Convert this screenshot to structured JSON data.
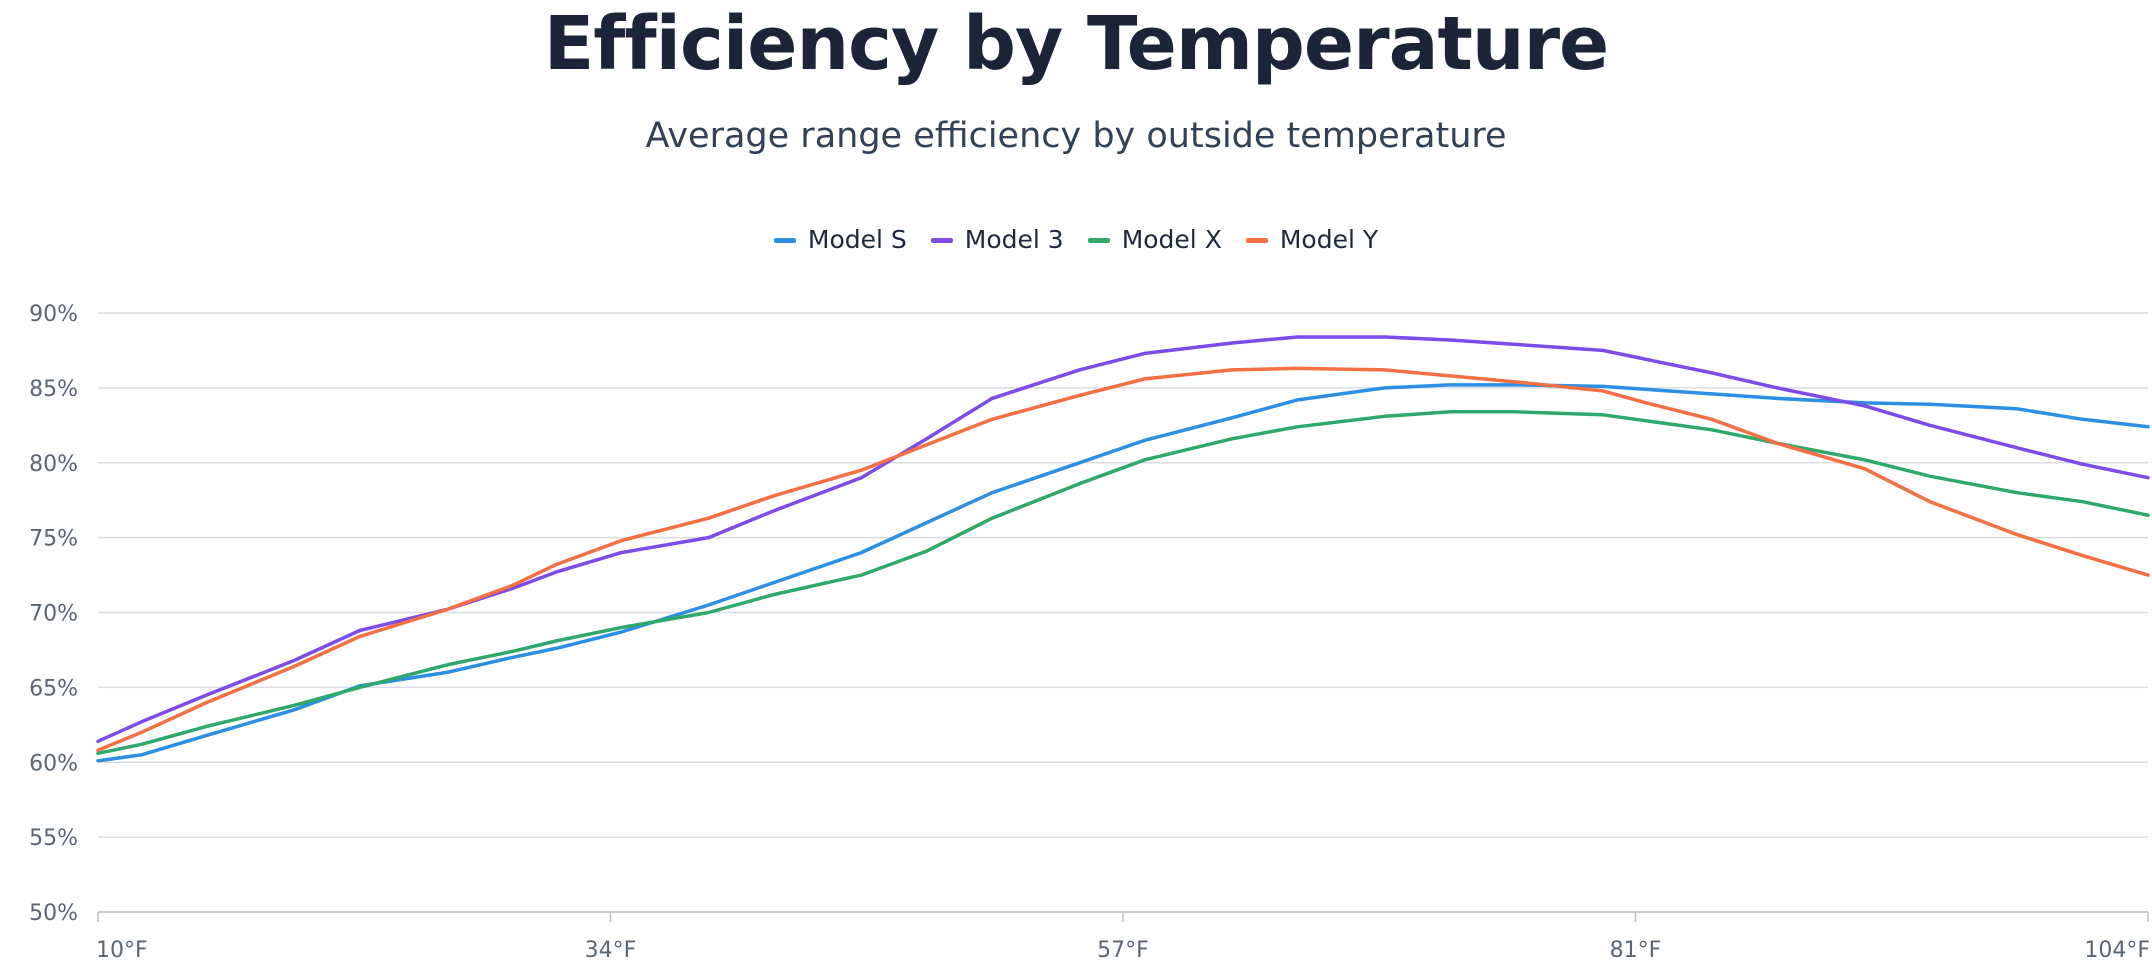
{
  "colors": {
    "title": "#1b2438",
    "subtitle": "#334155",
    "grid": "#d9dde3",
    "axis_text": "#5b6574"
  },
  "chart_data": {
    "type": "line",
    "title": "Efficiency by Temperature",
    "subtitle": "Average range efficiency by outside temperature",
    "xlabel": "",
    "ylabel": "",
    "x_ticks": [
      "10°F",
      "34°F",
      "57°F",
      "81°F",
      "104°F"
    ],
    "xlim": [
      10,
      104
    ],
    "y_ticks": [
      "50%",
      "55%",
      "60%",
      "65%",
      "70%",
      "75%",
      "80%",
      "85%",
      "90%"
    ],
    "ylim": [
      50,
      90
    ],
    "grid": true,
    "legend_position": "top-center",
    "x": [
      10,
      12,
      15,
      19,
      22,
      26,
      29,
      31,
      34,
      38,
      41,
      45,
      48,
      51,
      55,
      58,
      62,
      65,
      69,
      72,
      75,
      79,
      81,
      84,
      87,
      91,
      94,
      98,
      101,
      104
    ],
    "series": [
      {
        "name": "Model S",
        "color": "#2b8fe3",
        "values": [
          60.1,
          60.5,
          61.8,
          63.5,
          65.1,
          66.0,
          67.0,
          67.6,
          68.7,
          70.5,
          72.0,
          74.0,
          76.0,
          78.0,
          80.0,
          81.5,
          83.0,
          84.2,
          85.0,
          85.2,
          85.2,
          85.1,
          84.9,
          84.6,
          84.3,
          84.0,
          83.9,
          83.6,
          82.9,
          82.4
        ]
      },
      {
        "name": "Model 3",
        "color": "#7c4be8",
        "values": [
          61.4,
          62.7,
          64.5,
          66.8,
          68.8,
          70.2,
          71.6,
          72.7,
          74.0,
          75.0,
          76.8,
          79.0,
          81.6,
          84.3,
          86.2,
          87.3,
          88.0,
          88.4,
          88.4,
          88.2,
          87.9,
          87.5,
          86.9,
          86.0,
          85.0,
          83.8,
          82.5,
          81.0,
          79.9,
          79.0
        ]
      },
      {
        "name": "Model X",
        "color": "#2fa86b",
        "values": [
          60.6,
          61.2,
          62.4,
          63.8,
          65.0,
          66.5,
          67.4,
          68.1,
          69.0,
          70.0,
          71.2,
          72.5,
          74.1,
          76.3,
          78.6,
          80.2,
          81.6,
          82.4,
          83.1,
          83.4,
          83.4,
          83.2,
          82.8,
          82.2,
          81.3,
          80.2,
          79.1,
          78.0,
          77.4,
          76.5
        ]
      },
      {
        "name": "Model Y",
        "color": "#f46f42",
        "values": [
          60.8,
          62.0,
          64.0,
          66.4,
          68.4,
          70.2,
          71.8,
          73.2,
          74.8,
          76.3,
          77.8,
          79.5,
          81.2,
          82.9,
          84.5,
          85.6,
          86.2,
          86.3,
          86.2,
          85.8,
          85.4,
          84.8,
          84.0,
          82.9,
          81.3,
          79.6,
          77.4,
          75.2,
          73.8,
          72.5
        ]
      }
    ]
  }
}
